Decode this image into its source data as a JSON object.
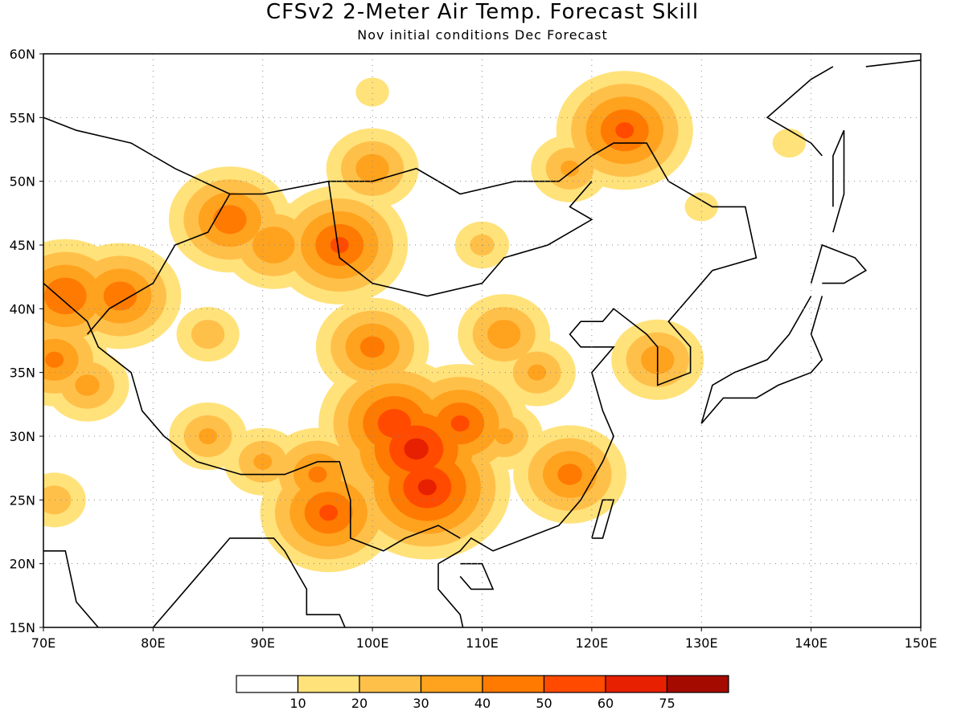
{
  "title": "CFSv2 2-Meter Air Temp. Forecast Skill",
  "subtitle": "Nov initial conditions  Dec Forecast",
  "lon_labels": [
    "70E",
    "80E",
    "90E",
    "100E",
    "110E",
    "120E",
    "130E",
    "140E",
    "150E"
  ],
  "lat_labels": [
    "60N",
    "55N",
    "50N",
    "45N",
    "40N",
    "35N",
    "30N",
    "25N",
    "20N",
    "15N"
  ],
  "colorbar": {
    "labels": [
      "10",
      "20",
      "30",
      "40",
      "50",
      "60",
      "75"
    ],
    "colors": [
      "#ffffff",
      "#ffe27a",
      "#ffc04a",
      "#ffa21e",
      "#ff7a00",
      "#ff4a00",
      "#e62000",
      "#a50a00"
    ]
  },
  "chart_data": {
    "type": "heatmap",
    "title": "CFSv2 2-Meter Air Temp. Forecast Skill",
    "subtitle": "Nov initial conditions  Dec Forecast",
    "xlim": [
      70,
      150
    ],
    "ylim": [
      15,
      60
    ],
    "xticks": [
      70,
      80,
      90,
      100,
      110,
      120,
      130,
      140,
      150
    ],
    "yticks": [
      15,
      20,
      25,
      30,
      35,
      40,
      45,
      50,
      55,
      60
    ],
    "levels": [
      10,
      20,
      30,
      40,
      50,
      60,
      75
    ],
    "grid": true,
    "skill_regions": [
      {
        "lon": 104,
        "lat": 29,
        "value": 62
      },
      {
        "lon": 102,
        "lat": 31,
        "value": 55
      },
      {
        "lon": 105,
        "lat": 26,
        "value": 60
      },
      {
        "lon": 108,
        "lat": 31,
        "value": 50
      },
      {
        "lon": 100,
        "lat": 37,
        "value": 42
      },
      {
        "lon": 96,
        "lat": 24,
        "value": 50
      },
      {
        "lon": 95,
        "lat": 27,
        "value": 40
      },
      {
        "lon": 85,
        "lat": 30,
        "value": 30
      },
      {
        "lon": 90,
        "lat": 28,
        "value": 30
      },
      {
        "lon": 77,
        "lat": 41,
        "value": 45
      },
      {
        "lon": 72,
        "lat": 41,
        "value": 48
      },
      {
        "lon": 71,
        "lat": 36,
        "value": 40
      },
      {
        "lon": 74,
        "lat": 34,
        "value": 32
      },
      {
        "lon": 87,
        "lat": 47,
        "value": 45
      },
      {
        "lon": 91,
        "lat": 45,
        "value": 38
      },
      {
        "lon": 97,
        "lat": 45,
        "value": 50
      },
      {
        "lon": 123,
        "lat": 54,
        "value": 50
      },
      {
        "lon": 118,
        "lat": 51,
        "value": 30
      },
      {
        "lon": 100,
        "lat": 51,
        "value": 35
      },
      {
        "lon": 115,
        "lat": 35,
        "value": 30
      },
      {
        "lon": 118,
        "lat": 27,
        "value": 42
      },
      {
        "lon": 112,
        "lat": 30,
        "value": 30
      },
      {
        "lon": 126,
        "lat": 36,
        "value": 35
      },
      {
        "lon": 112,
        "lat": 38,
        "value": 35
      },
      {
        "lon": 85,
        "lat": 38,
        "value": 25
      },
      {
        "lon": 110,
        "lat": 45,
        "value": 22
      },
      {
        "lon": 130,
        "lat": 48,
        "value": 15
      },
      {
        "lon": 100,
        "lat": 57,
        "value": 15
      },
      {
        "lon": 138,
        "lat": 53,
        "value": 15
      },
      {
        "lon": 71,
        "lat": 25,
        "value": 25
      }
    ]
  }
}
